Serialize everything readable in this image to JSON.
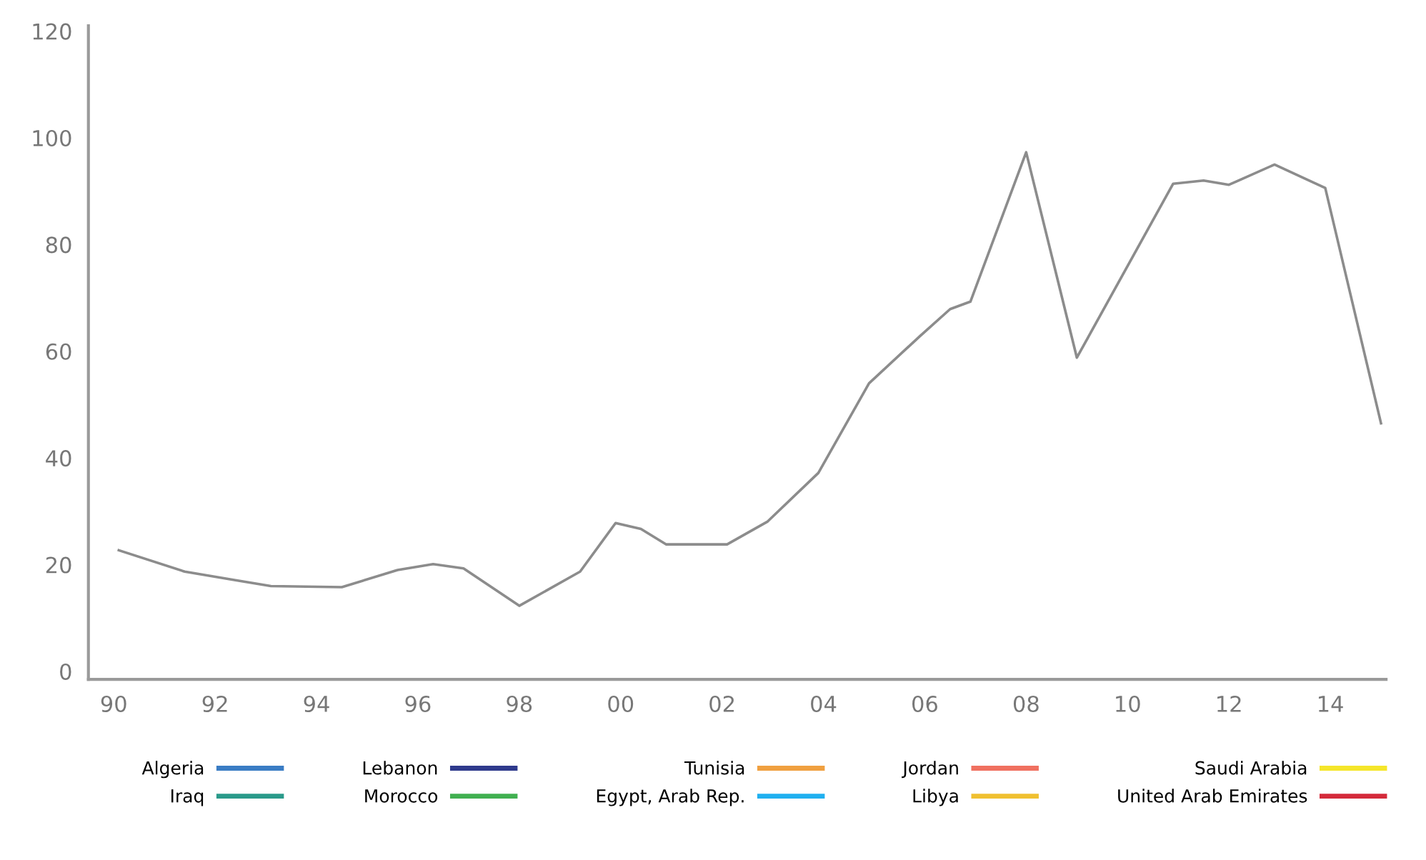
{
  "chart_data": {
    "type": "line",
    "x": [
      1990.1,
      1991.4,
      1992.4,
      1993.1,
      1994.5,
      1995.6,
      1996.3,
      1996.9,
      1998.0,
      1999.2,
      1999.9,
      2000.4,
      2000.9,
      2002.1,
      2002.9,
      2003.9,
      2004.9,
      2005.9,
      2006.5,
      2006.9,
      2008.0,
      2009.0,
      2010.9,
      2011.5,
      2012.0,
      2012.9,
      2013.9,
      2015.0
    ],
    "series": [
      {
        "color": "#8c8c8c",
        "values": [
          22.7,
          18.7,
          17.1,
          16.0,
          15.8,
          19.0,
          20.1,
          19.3,
          12.3,
          18.7,
          27.8,
          26.7,
          23.8,
          23.8,
          28.1,
          37.2,
          54.0,
          62.8,
          67.9,
          69.3,
          97.3,
          58.8,
          91.4,
          92.0,
          91.2,
          95.0,
          90.6,
          46.5
        ]
      },
      {
        "name": "Algeria",
        "color": "#3a7cc4",
        "values": [
          null,
          null,
          null,
          null,
          null,
          null,
          null,
          null,
          null,
          null,
          null,
          null,
          null,
          null,
          null,
          null,
          null,
          null,
          null,
          null,
          null,
          null,
          null,
          null,
          null,
          null,
          null,
          null
        ]
      },
      {
        "name": "Lebanon",
        "color": "#2e3a8c",
        "values": [
          null,
          null,
          null,
          null,
          null,
          null,
          null,
          null,
          null,
          null,
          null,
          null,
          null,
          null,
          null,
          null,
          null,
          null,
          null,
          null,
          null,
          null,
          null,
          null,
          null,
          null,
          null,
          null
        ]
      },
      {
        "name": "Tunisia",
        "color": "#f0a040",
        "values": [
          null,
          null,
          null,
          null,
          null,
          null,
          null,
          null,
          null,
          null,
          null,
          null,
          null,
          null,
          null,
          null,
          null,
          null,
          null,
          null,
          null,
          null,
          null,
          null,
          null,
          null,
          null,
          null
        ]
      },
      {
        "name": "Jordan",
        "color": "#f07060",
        "values": [
          null,
          null,
          null,
          null,
          null,
          null,
          null,
          null,
          null,
          null,
          null,
          null,
          null,
          null,
          null,
          null,
          null,
          null,
          null,
          null,
          null,
          null,
          null,
          null,
          null,
          null,
          null,
          null
        ]
      },
      {
        "name": "Saudi Arabia",
        "color": "#f5e62a",
        "values": [
          null,
          null,
          null,
          null,
          null,
          null,
          null,
          null,
          null,
          null,
          null,
          null,
          null,
          null,
          null,
          null,
          null,
          null,
          null,
          null,
          null,
          null,
          null,
          null,
          null,
          null,
          null,
          null
        ]
      },
      {
        "name": "Iraq",
        "color": "#2a9a8a",
        "values": [
          null,
          null,
          null,
          null,
          null,
          null,
          null,
          null,
          null,
          null,
          null,
          null,
          null,
          null,
          null,
          null,
          null,
          null,
          null,
          null,
          null,
          null,
          null,
          null,
          null,
          null,
          null,
          null
        ]
      },
      {
        "name": "Morocco",
        "color": "#40b050",
        "values": [
          null,
          null,
          null,
          null,
          null,
          null,
          null,
          null,
          null,
          null,
          null,
          null,
          null,
          null,
          null,
          null,
          null,
          null,
          null,
          null,
          null,
          null,
          null,
          null,
          null,
          null,
          null,
          null
        ]
      },
      {
        "name": "Egypt, Arab Rep.",
        "color": "#20b0f0",
        "values": [
          null,
          null,
          null,
          null,
          null,
          null,
          null,
          null,
          null,
          null,
          null,
          null,
          null,
          null,
          null,
          null,
          null,
          null,
          null,
          null,
          null,
          null,
          null,
          null,
          null,
          null,
          null,
          null
        ]
      },
      {
        "name": "Libya",
        "color": "#f0c030",
        "values": [
          null,
          null,
          null,
          null,
          null,
          null,
          null,
          null,
          null,
          null,
          null,
          null,
          null,
          null,
          null,
          null,
          null,
          null,
          null,
          null,
          null,
          null,
          null,
          null,
          null,
          null,
          null,
          null
        ]
      },
      {
        "name": "United Arab Emirates",
        "color": "#d42a3a",
        "values": [
          null,
          null,
          null,
          null,
          null,
          null,
          null,
          null,
          null,
          null,
          null,
          null,
          null,
          null,
          null,
          null,
          null,
          null,
          null,
          null,
          null,
          null,
          null,
          null,
          null,
          null,
          null,
          null
        ]
      }
    ],
    "xlim": [
      1989.5,
      2015.1
    ],
    "xticks": [
      {
        "value": 1990,
        "label": "90"
      },
      {
        "value": 1992,
        "label": "92"
      },
      {
        "value": 1994,
        "label": "94"
      },
      {
        "value": 1996,
        "label": "96"
      },
      {
        "value": 1998,
        "label": "98"
      },
      {
        "value": 2000,
        "label": "00"
      },
      {
        "value": 2002,
        "label": "02"
      },
      {
        "value": 2004,
        "label": "04"
      },
      {
        "value": 2006,
        "label": "06"
      },
      {
        "value": 2008,
        "label": "08"
      },
      {
        "value": 2010,
        "label": "10"
      },
      {
        "value": 2012,
        "label": "12"
      },
      {
        "value": 2014,
        "label": "14"
      }
    ],
    "ylim": [
      -1.5,
      121
    ],
    "yticks": [
      0,
      20,
      40,
      60,
      80,
      100,
      120
    ],
    "grid": false,
    "legend": "bottom",
    "marker": "none",
    "line_style": "solid"
  }
}
